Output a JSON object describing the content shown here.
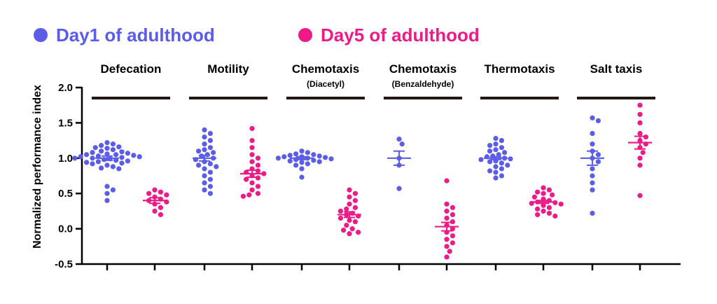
{
  "chart_data": {
    "type": "scatter",
    "title": "",
    "ylabel": "Normalized performance index",
    "xlabel": "",
    "ylim": [
      -0.5,
      2.0
    ],
    "yticks": [
      -0.5,
      0.0,
      0.5,
      1.0,
      1.5,
      2.0
    ],
    "ytick_labels": [
      "-0.5",
      "0.0",
      "0.5",
      "1.0",
      "1.5",
      "2.0"
    ],
    "grid": false,
    "legend_placement": "top-left",
    "error_bars": "mean ± SEM",
    "series": [
      {
        "name": "Day1 of adulthood",
        "color": "#5b5ce8"
      },
      {
        "name": "Day5 of adulthood",
        "color": "#ee1a87"
      }
    ],
    "groups": [
      {
        "title": "Defecation",
        "subtitle": "",
        "day1": {
          "mean": 1.0,
          "sem": 0.03,
          "points": [
            1.22,
            1.2,
            1.18,
            1.16,
            1.15,
            1.14,
            1.12,
            1.1,
            1.09,
            1.08,
            1.07,
            1.06,
            1.05,
            1.05,
            1.04,
            1.03,
            1.02,
            1.02,
            1.01,
            1.0,
            1.0,
            0.99,
            0.98,
            0.97,
            0.96,
            0.95,
            0.94,
            0.93,
            0.92,
            0.9,
            0.88,
            0.86,
            0.85,
            0.6,
            0.55,
            0.5,
            0.4
          ]
        },
        "day5": {
          "mean": 0.4,
          "sem": 0.04,
          "points": [
            0.55,
            0.52,
            0.5,
            0.48,
            0.45,
            0.42,
            0.4,
            0.38,
            0.35,
            0.3,
            0.25,
            0.2
          ]
        }
      },
      {
        "title": "Motility",
        "subtitle": "",
        "day1": {
          "mean": 1.0,
          "sem": 0.04,
          "points": [
            1.4,
            1.35,
            1.3,
            1.25,
            1.2,
            1.15,
            1.12,
            1.1,
            1.08,
            1.05,
            1.03,
            1.0,
            0.98,
            0.95,
            0.92,
            0.9,
            0.88,
            0.85,
            0.8,
            0.75,
            0.7,
            0.65,
            0.6,
            0.55,
            0.5
          ]
        },
        "day5": {
          "mean": 0.78,
          "sem": 0.05,
          "points": [
            1.42,
            1.25,
            1.15,
            1.05,
            1.0,
            0.95,
            0.9,
            0.85,
            0.82,
            0.8,
            0.78,
            0.75,
            0.72,
            0.7,
            0.65,
            0.6,
            0.55,
            0.5,
            0.48,
            0.46
          ]
        }
      },
      {
        "title": "Chemotaxis",
        "subtitle": "(Diacetyl)",
        "day1": {
          "mean": 1.0,
          "sem": 0.02,
          "points": [
            1.1,
            1.08,
            1.06,
            1.05,
            1.04,
            1.03,
            1.02,
            1.02,
            1.01,
            1.0,
            1.0,
            0.99,
            0.98,
            0.97,
            0.96,
            0.95,
            0.94,
            0.92,
            0.9,
            0.85,
            0.73
          ]
        },
        "day5": {
          "mean": 0.2,
          "sem": 0.04,
          "points": [
            0.55,
            0.5,
            0.45,
            0.4,
            0.35,
            0.3,
            0.28,
            0.25,
            0.22,
            0.2,
            0.18,
            0.15,
            0.12,
            0.1,
            0.05,
            0.0,
            -0.02,
            -0.05,
            -0.07
          ]
        }
      },
      {
        "title": "Chemotaxis",
        "subtitle": "(Benzaldehyde)",
        "day1": {
          "mean": 1.0,
          "sem": 0.1,
          "points": [
            1.27,
            1.2,
            1.0,
            0.9,
            0.57
          ]
        },
        "day5": {
          "mean": 0.03,
          "sem": 0.06,
          "points": [
            0.68,
            0.35,
            0.3,
            0.25,
            0.2,
            0.15,
            0.1,
            0.05,
            0.0,
            -0.05,
            -0.1,
            -0.15,
            -0.2,
            -0.25,
            -0.32,
            -0.4
          ]
        }
      },
      {
        "title": "Thermotaxis",
        "subtitle": "",
        "day1": {
          "mean": 1.0,
          "sem": 0.02,
          "points": [
            1.28,
            1.25,
            1.2,
            1.18,
            1.15,
            1.12,
            1.1,
            1.08,
            1.05,
            1.03,
            1.02,
            1.0,
            0.99,
            0.98,
            0.96,
            0.95,
            0.93,
            0.9,
            0.88,
            0.85,
            0.82,
            0.8,
            0.75,
            0.72
          ]
        },
        "day5": {
          "mean": 0.38,
          "sem": 0.02,
          "points": [
            0.58,
            0.55,
            0.52,
            0.5,
            0.48,
            0.45,
            0.42,
            0.4,
            0.38,
            0.37,
            0.36,
            0.35,
            0.33,
            0.3,
            0.28,
            0.25,
            0.22,
            0.2,
            0.18
          ]
        }
      },
      {
        "title": "Salt taxis",
        "subtitle": "",
        "day1": {
          "mean": 1.0,
          "sem": 0.1,
          "points": [
            1.57,
            1.53,
            1.35,
            1.2,
            1.1,
            1.05,
            1.0,
            0.95,
            0.85,
            0.75,
            0.65,
            0.55,
            0.22
          ]
        },
        "day5": {
          "mean": 1.22,
          "sem": 0.09,
          "points": [
            1.75,
            1.62,
            1.5,
            1.35,
            1.3,
            1.25,
            1.2,
            1.15,
            1.08,
            1.0,
            0.9,
            0.47
          ]
        }
      }
    ]
  }
}
